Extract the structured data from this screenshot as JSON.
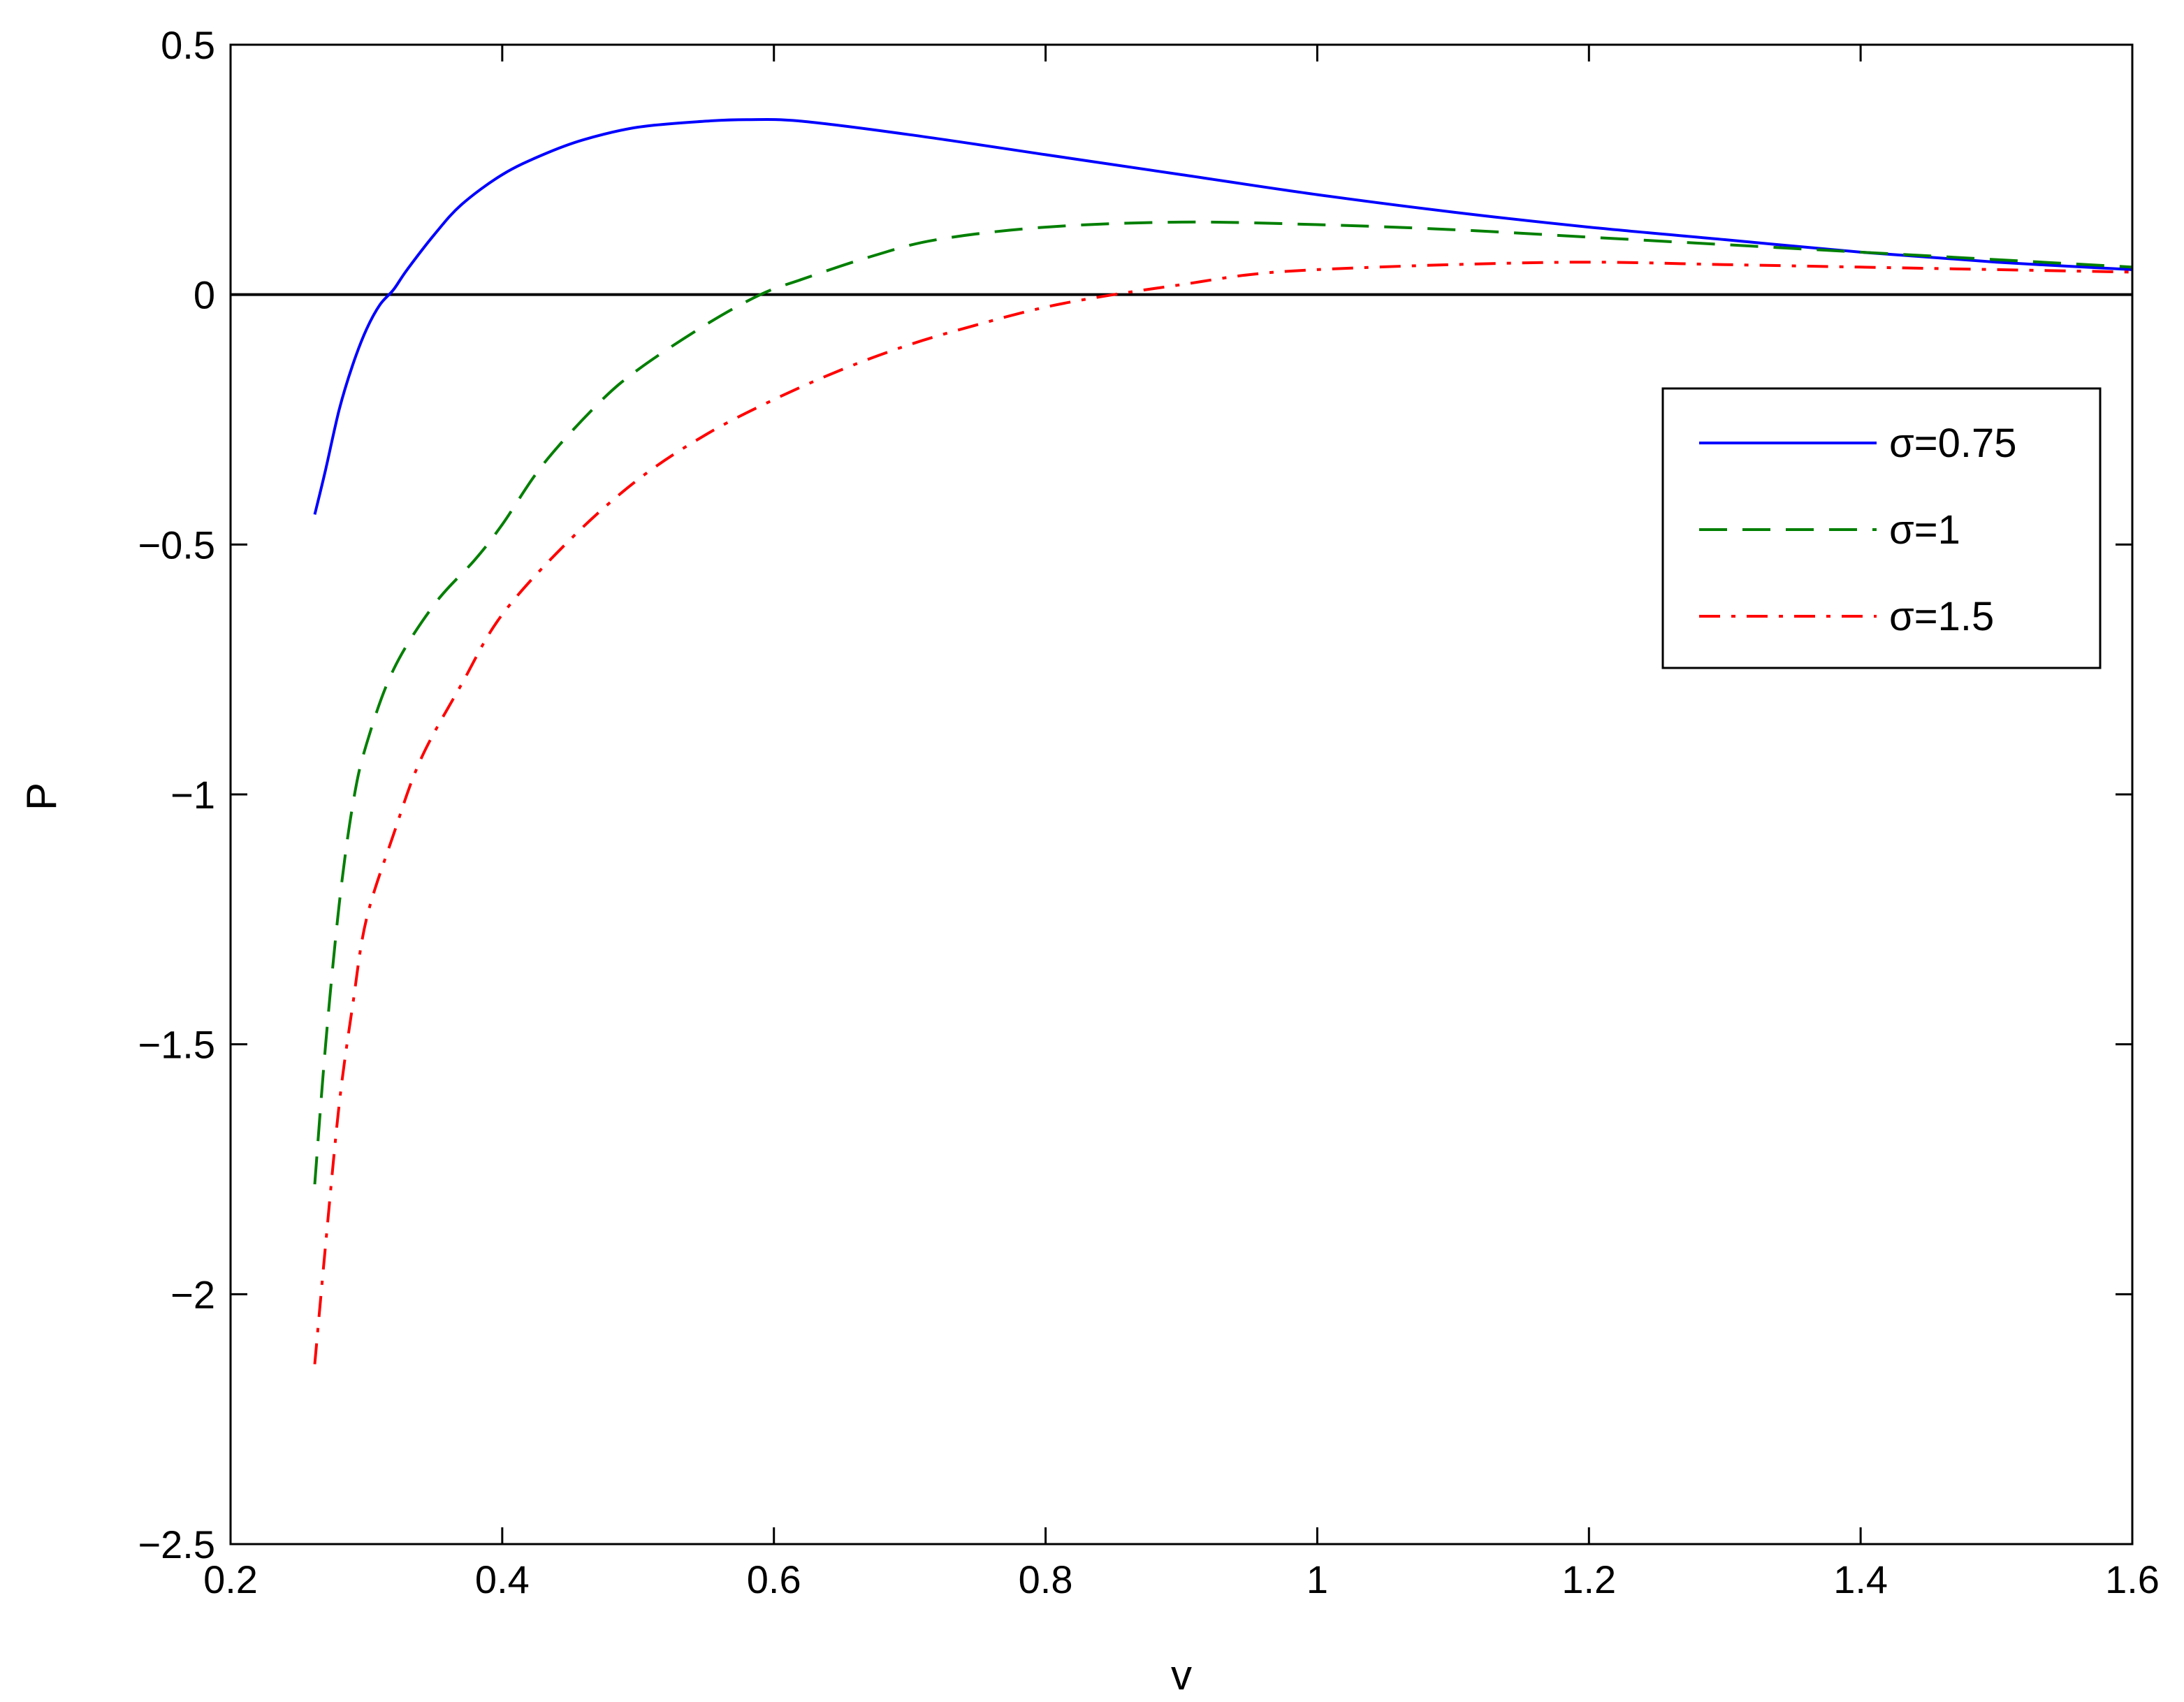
{
  "chart_data": {
    "type": "line",
    "title": "",
    "xlabel": "v",
    "ylabel": "P",
    "xlim": [
      0.2,
      1.6
    ],
    "ylim": [
      -2.5,
      0.5
    ],
    "xticks": [
      0.2,
      0.4,
      0.6,
      0.8,
      1.0,
      1.2,
      1.4,
      1.6
    ],
    "xtick_labels": [
      "0.2",
      "0.4",
      "0.6",
      "0.8",
      "1",
      "1.2",
      "1.4",
      "1.6"
    ],
    "yticks": [
      -2.5,
      -2.0,
      -1.5,
      -1.0,
      -0.5,
      0.0,
      0.5
    ],
    "ytick_labels": [
      "−2.5",
      "−2",
      "−1.5",
      "−1",
      "−0.5",
      "0",
      "0.5"
    ],
    "grid": false,
    "legend_position": "upper-right",
    "reference_line": {
      "y": 0,
      "color": "#000000"
    },
    "series": [
      {
        "name": "σ=0.75",
        "color": "#0000ff",
        "style": "solid",
        "points": [
          [
            0.262,
            -0.44
          ],
          [
            0.27,
            -0.35
          ],
          [
            0.28,
            -0.23
          ],
          [
            0.29,
            -0.14
          ],
          [
            0.3,
            -0.07
          ],
          [
            0.31,
            -0.02
          ],
          [
            0.32,
            0.01
          ],
          [
            0.33,
            0.05
          ],
          [
            0.35,
            0.12
          ],
          [
            0.37,
            0.18
          ],
          [
            0.4,
            0.24
          ],
          [
            0.43,
            0.28
          ],
          [
            0.46,
            0.31
          ],
          [
            0.5,
            0.335
          ],
          [
            0.55,
            0.347
          ],
          [
            0.58,
            0.35
          ],
          [
            0.62,
            0.347
          ],
          [
            0.7,
            0.32
          ],
          [
            0.8,
            0.28
          ],
          [
            0.9,
            0.24
          ],
          [
            1.0,
            0.2
          ],
          [
            1.1,
            0.165
          ],
          [
            1.2,
            0.135
          ],
          [
            1.3,
            0.11
          ],
          [
            1.4,
            0.085
          ],
          [
            1.5,
            0.065
          ],
          [
            1.6,
            0.05
          ]
        ]
      },
      {
        "name": "σ=1",
        "color": "#007f00",
        "style": "dashed",
        "points": [
          [
            0.262,
            -1.78
          ],
          [
            0.27,
            -1.5
          ],
          [
            0.28,
            -1.22
          ],
          [
            0.29,
            -1.02
          ],
          [
            0.3,
            -0.9
          ],
          [
            0.32,
            -0.75
          ],
          [
            0.35,
            -0.62
          ],
          [
            0.38,
            -0.53
          ],
          [
            0.4,
            -0.46
          ],
          [
            0.43,
            -0.34
          ],
          [
            0.47,
            -0.22
          ],
          [
            0.5,
            -0.15
          ],
          [
            0.55,
            -0.06
          ],
          [
            0.59,
            0.0
          ],
          [
            0.62,
            0.03
          ],
          [
            0.67,
            0.075
          ],
          [
            0.72,
            0.11
          ],
          [
            0.8,
            0.135
          ],
          [
            0.9,
            0.145
          ],
          [
            1.0,
            0.14
          ],
          [
            1.1,
            0.13
          ],
          [
            1.2,
            0.115
          ],
          [
            1.3,
            0.1
          ],
          [
            1.4,
            0.085
          ],
          [
            1.5,
            0.07
          ],
          [
            1.6,
            0.055
          ]
        ]
      },
      {
        "name": "σ=1.5",
        "color": "#ff0000",
        "style": "dashdot",
        "points": [
          [
            0.262,
            -2.14
          ],
          [
            0.27,
            -1.9
          ],
          [
            0.28,
            -1.62
          ],
          [
            0.29,
            -1.42
          ],
          [
            0.3,
            -1.25
          ],
          [
            0.32,
            -1.08
          ],
          [
            0.34,
            -0.93
          ],
          [
            0.37,
            -0.78
          ],
          [
            0.4,
            -0.64
          ],
          [
            0.45,
            -0.49
          ],
          [
            0.5,
            -0.37
          ],
          [
            0.55,
            -0.28
          ],
          [
            0.6,
            -0.21
          ],
          [
            0.65,
            -0.15
          ],
          [
            0.7,
            -0.1
          ],
          [
            0.75,
            -0.06
          ],
          [
            0.8,
            -0.025
          ],
          [
            0.85,
            0.0
          ],
          [
            0.9,
            0.02
          ],
          [
            0.95,
            0.04
          ],
          [
            1.0,
            0.05
          ],
          [
            1.1,
            0.06
          ],
          [
            1.2,
            0.065
          ],
          [
            1.3,
            0.06
          ],
          [
            1.4,
            0.055
          ],
          [
            1.5,
            0.05
          ],
          [
            1.6,
            0.045
          ]
        ]
      }
    ]
  }
}
